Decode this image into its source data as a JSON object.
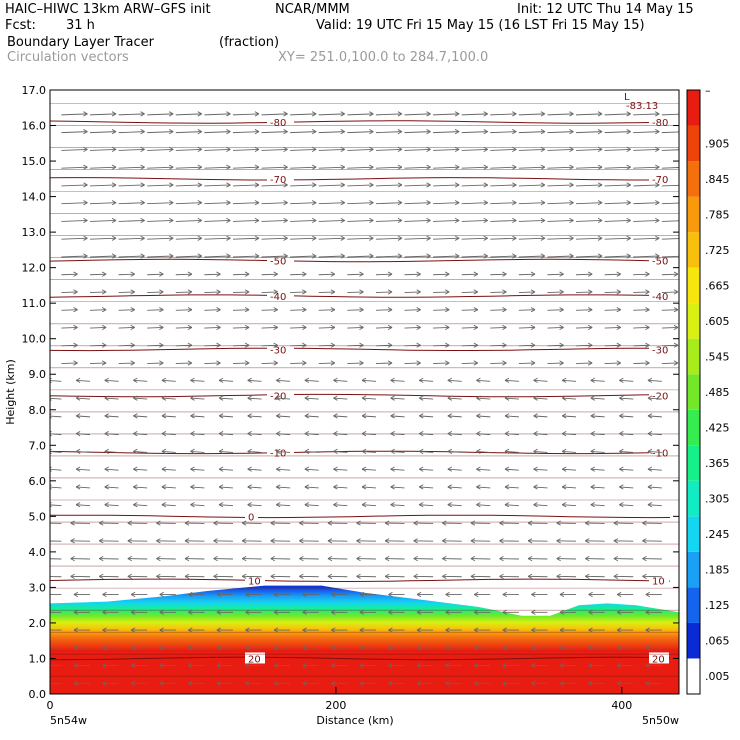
{
  "header": {
    "model": "HAIC–HIWC 13km ARW–GFS init",
    "org": "NCAR/MMM",
    "init": "Init: 12 UTC Thu 14 May 15",
    "fcst_label": "Fcst:",
    "fcst_value": "31 h",
    "valid": "Valid: 19 UTC Fri 15 May 15 (16 LST Fri 15 May 15)",
    "field": "Boundary Layer Tracer",
    "field_units": "(fraction)",
    "overlay": "Circulation vectors",
    "xsec": "XY= 251.0,100.0 to 284.7,100.0"
  },
  "chart_data": {
    "type": "heatmap",
    "ylabel": "Height (km)",
    "xlabel": "Distance (km)",
    "ylim": [
      0,
      17
    ],
    "xlim": [
      0,
      440
    ],
    "y_ticks": [
      "0.0",
      "1.0",
      "2.0",
      "3.0",
      "4.0",
      "5.0",
      "6.0",
      "7.0",
      "8.0",
      "9.0",
      "10.0",
      "11.0",
      "12.0",
      "13.0",
      "14.0",
      "15.0",
      "16.0",
      "17.0"
    ],
    "x_ticks": [
      0,
      200,
      400
    ],
    "x_tick_labels": [
      "0",
      "200",
      "400"
    ],
    "left_endpoint": "5n54w",
    "right_endpoint": "5n50w",
    "colorbar": {
      "labels": [
        ".005",
        ".065",
        ".125",
        ".185",
        ".245",
        ".305",
        ".365",
        ".425",
        ".485",
        ".545",
        ".605",
        ".665",
        ".725",
        ".785",
        ".845",
        ".905",
        "–"
      ],
      "colors": [
        "#ffffff",
        "#0a2ad8",
        "#1464ee",
        "#1aa0f4",
        "#14d6f0",
        "#12ecc4",
        "#16f08a",
        "#36ec4e",
        "#72e828",
        "#a8ec1c",
        "#d8f012",
        "#f6e60e",
        "#f8c00c",
        "#f89a0c",
        "#f4700c",
        "#ee440c",
        "#e81c10"
      ]
    },
    "temperature_contours": [
      {
        "label": "20",
        "height_km": 1.0
      },
      {
        "label": "10",
        "height_km": 3.2
      },
      {
        "label": "0",
        "height_km": 5.0
      },
      {
        "label": "-10",
        "height_km": 6.8
      },
      {
        "label": "-20",
        "height_km": 8.4
      },
      {
        "label": "-30",
        "height_km": 9.7
      },
      {
        "label": "-40",
        "height_km": 11.2
      },
      {
        "label": "-50",
        "height_km": 12.2
      },
      {
        "label": "-70",
        "height_km": 14.5
      },
      {
        "label": "-80",
        "height_km": 16.1
      }
    ],
    "extremum_label": "L",
    "extremum_value": "-83.13",
    "tracer_top_km": [
      [
        0,
        2.55
      ],
      [
        40,
        2.6
      ],
      [
        80,
        2.75
      ],
      [
        110,
        2.9
      ],
      [
        150,
        3.05
      ],
      [
        190,
        3.05
      ],
      [
        220,
        2.85
      ],
      [
        260,
        2.65
      ],
      [
        300,
        2.45
      ],
      [
        330,
        2.2
      ],
      [
        350,
        2.2
      ],
      [
        370,
        2.5
      ],
      [
        390,
        2.55
      ],
      [
        410,
        2.5
      ],
      [
        440,
        2.3
      ]
    ]
  }
}
